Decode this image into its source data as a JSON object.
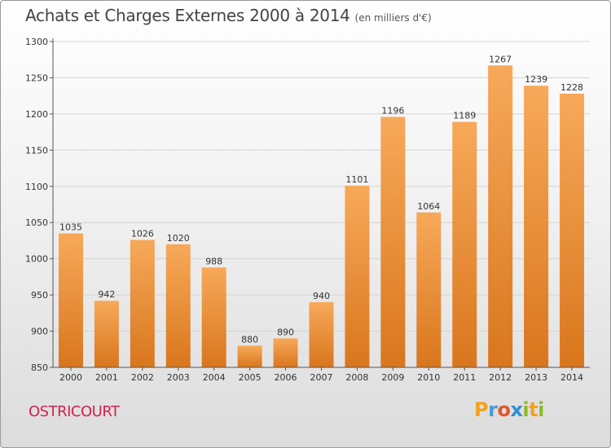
{
  "header": {
    "title": "Achats et Charges Externes 2000 à 2014",
    "unit_note": "(en milliers d'€)"
  },
  "footer": {
    "commune": "OSTRICOURT",
    "logo_letters": [
      "P",
      "r",
      "o",
      "x",
      "i",
      "t",
      "i"
    ],
    "logo_colors": [
      "#f2a21a",
      "#4c9ad6",
      "#e4562a",
      "#2c8fd0",
      "#8dbb25",
      "#f2a21a",
      "#8dbb25"
    ]
  },
  "chart_data": {
    "type": "bar",
    "title": "Achats et Charges Externes 2000 à 2014",
    "subtitle": "(en milliers d'€)",
    "categories": [
      "2000",
      "2001",
      "2002",
      "2003",
      "2004",
      "2005",
      "2006",
      "2007",
      "2008",
      "2009",
      "2010",
      "2011",
      "2012",
      "2013",
      "2014"
    ],
    "values": [
      1035,
      942,
      1026,
      1020,
      988,
      880,
      890,
      940,
      1101,
      1196,
      1064,
      1189,
      1267,
      1239,
      1228
    ],
    "ylim": [
      850,
      1300
    ],
    "yticks": [
      850,
      900,
      950,
      1000,
      1050,
      1100,
      1150,
      1200,
      1250,
      1300
    ],
    "grid": true,
    "bar_color_light": "#f7a95a",
    "bar_color_dark": "#d9761d"
  }
}
